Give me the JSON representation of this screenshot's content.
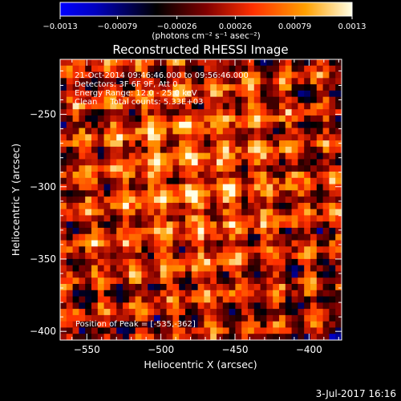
{
  "colorbar": {
    "tick_labels": [
      "-0.0013",
      "-0.00079",
      "-0.00026",
      "0.00026",
      "0.00079",
      "0.0013"
    ],
    "range": [
      -0.0013,
      0.0013
    ],
    "unit_label": "(photons cm⁻² s⁻¹ asec⁻²)",
    "colormap": [
      "#0000ff",
      "#000000",
      "#7a0000",
      "#ff2a00",
      "#ffa000",
      "#ffffe0"
    ]
  },
  "chart_data": {
    "type": "heatmap",
    "title": "Reconstructed RHESSI Image",
    "xlabel": "Heliocentric X (arcsec)",
    "ylabel": "Heliocentric Y (arcsec)",
    "xlim": [
      -568,
      -378
    ],
    "ylim": [
      -406,
      -212
    ],
    "x_ticks": [
      -550,
      -500,
      -450,
      -400
    ],
    "y_ticks": [
      -250,
      -300,
      -350,
      -400
    ],
    "x_tick_labels": [
      "−550",
      "−500",
      "−450",
      "−400"
    ],
    "y_tick_labels": [
      "−250",
      "−300",
      "−350",
      "−400"
    ],
    "peak": [
      -535,
      -362
    ],
    "grid": false
  },
  "info": {
    "line1": "21-Oct-2014 09:46:46.000 to 09:56:46.000",
    "line2": "Detectors: 3F 6F 9F, Att 0",
    "line3": "Energy Range: 12.0 - 25.0 keV",
    "line4": "Clean     Total counts: 5.33E+03",
    "peak_label": "Position of Peak = [-535,-362]"
  },
  "footer": {
    "date": "3-Jul-2017 16:16"
  }
}
